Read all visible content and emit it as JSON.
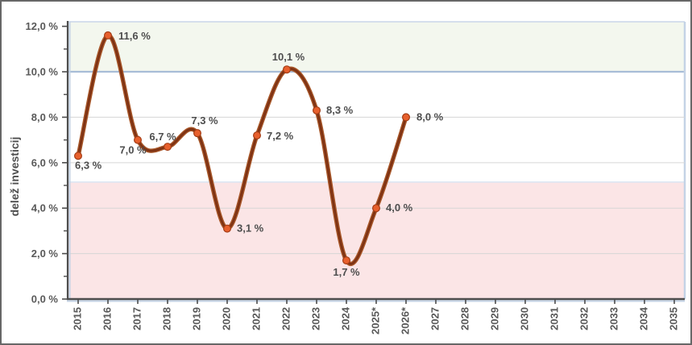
{
  "chart_data": {
    "type": "line",
    "title": "",
    "xlabel": "",
    "ylabel": "delež investicij",
    "x_categories": [
      "2015",
      "2016",
      "2017",
      "2018",
      "2019",
      "2020",
      "2021",
      "2022",
      "2023",
      "2024",
      "2025*",
      "2026*",
      "2027",
      "2028",
      "2029",
      "2030",
      "2031",
      "2032",
      "2033",
      "2034",
      "2035"
    ],
    "y_ticks": [
      {
        "value": 0,
        "label": "0,0 %"
      },
      {
        "value": 2,
        "label": "2,0 %"
      },
      {
        "value": 4,
        "label": "4,0 %"
      },
      {
        "value": 6,
        "label": "6,0 %"
      },
      {
        "value": 8,
        "label": "8,0 %"
      },
      {
        "value": 10,
        "label": "10,0 %"
      },
      {
        "value": 12,
        "label": "12,0 %"
      }
    ],
    "ylim": [
      0,
      12.2
    ],
    "grid": true,
    "legend": "none",
    "series": [
      {
        "name": "delež investicij",
        "x": [
          "2015",
          "2016",
          "2017",
          "2018",
          "2019",
          "2020",
          "2021",
          "2022",
          "2023",
          "2024",
          "2025*",
          "2026*"
        ],
        "values": [
          6.3,
          11.6,
          7.0,
          6.7,
          7.3,
          3.1,
          7.2,
          10.1,
          8.3,
          1.7,
          4.0,
          8.0
        ],
        "point_labels": [
          "6,3 %",
          "11,6 %",
          "7,0 %",
          "6,7 %",
          "7,3 %",
          "3,1 %",
          "7,2 %",
          "10,1 %",
          "8,3 %",
          "1,7 %",
          "4,0 %",
          "8,0 %"
        ]
      }
    ],
    "bands": [
      {
        "name": "upper-target-band",
        "from": 10,
        "to": 12.2,
        "fill": "#f3f7ee",
        "edge": "#a8bdd7"
      },
      {
        "name": "lower-warning-band",
        "from": 0,
        "to": 5.15,
        "fill": "#fbe5e6",
        "edge": "#dde8f3"
      }
    ],
    "colors": {
      "line_core": "#7f3314",
      "line_edge": "#a9592b",
      "marker_fill": "#e7602d",
      "marker_stroke": "#a33c15",
      "point_label_text": "#4d4d4d",
      "axis_text": "#595959",
      "grid": "#d6d6d6",
      "axis": "#4d4d4d",
      "axis_shadow": "#c4d3e6",
      "plot_top_edge": "#c9d6e8"
    }
  }
}
